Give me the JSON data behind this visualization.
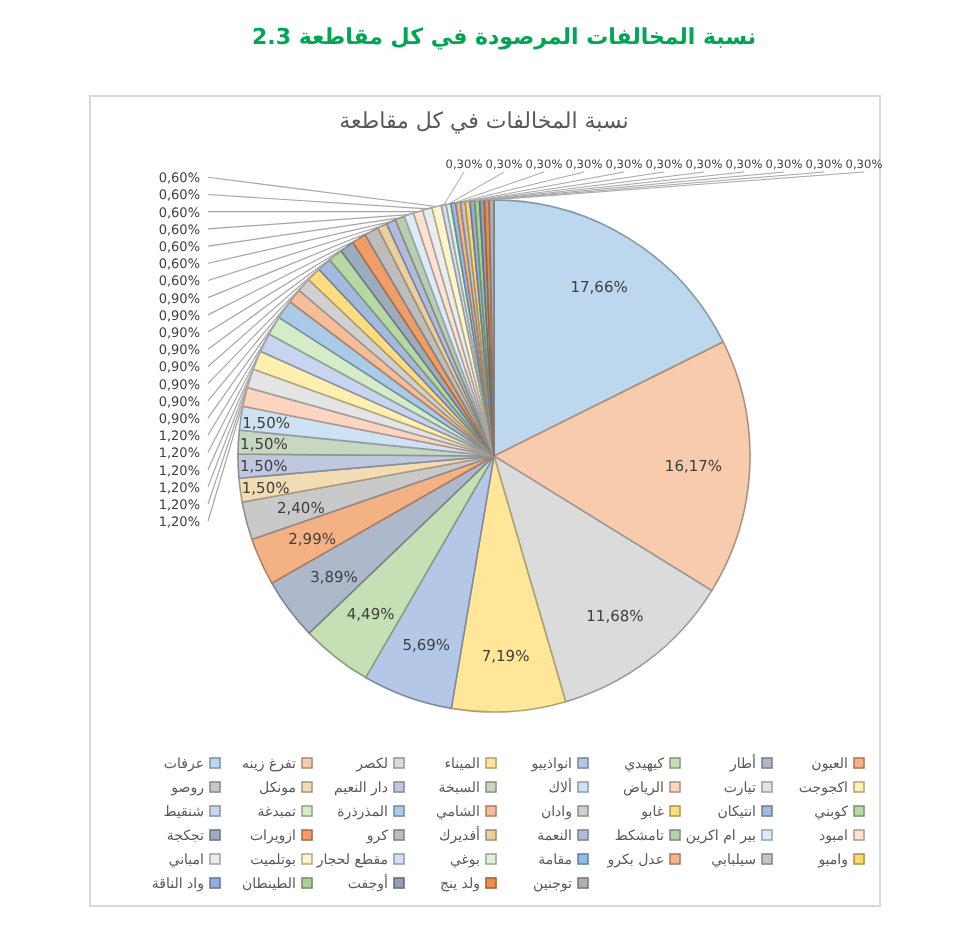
{
  "chart_data": {
    "type": "pie",
    "title": "نسبة المخالفات في كل مقاطعة",
    "annotations": [
      "2.3   نسبة المخالفات المرصودة في كل مقاطعة"
    ],
    "categories": [
      "عرفات",
      "تفرغ زينه",
      "لكصر",
      "الميناء",
      "انواذيبو",
      "كيهيدي",
      "أطار",
      "العيون",
      "روصو",
      "مونكل",
      "دار النعيم",
      "السبخة",
      "ألاك",
      "الرياض",
      "تيارت",
      "اكجوجت",
      "شنقيط",
      "تمبدغة",
      "المذرذرة",
      "الشامي",
      "وادان",
      "غابو",
      "انتيكان",
      "كوبني",
      "تجكجة",
      "ازويرات",
      "كرو",
      "أفديرك",
      "النعمة",
      "تامشكط",
      "بير ام اكرين",
      "امبود",
      "امباني",
      "بوتلميت",
      "مقطع لحجار",
      "بوغي",
      "مقامة",
      "عدل بكرو",
      "سيلبابي",
      "وامبو",
      "واد الناقة",
      "الطينطان",
      "أوجفت",
      "ولد ينج",
      "توجنين"
    ],
    "values": [
      17.66,
      16.17,
      11.68,
      7.19,
      5.69,
      4.49,
      3.89,
      2.99,
      2.4,
      1.5,
      1.5,
      1.5,
      1.5,
      1.2,
      1.2,
      1.2,
      1.2,
      1.2,
      1.2,
      0.9,
      0.9,
      0.9,
      0.9,
      0.9,
      0.9,
      0.9,
      0.9,
      0.6,
      0.6,
      0.6,
      0.6,
      0.6,
      0.6,
      0.6,
      0.3,
      0.3,
      0.3,
      0.3,
      0.3,
      0.3,
      0.3,
      0.3,
      0.3,
      0.3,
      0.3
    ],
    "value_labels": [
      "17,66%",
      "16,17%",
      "11,68%",
      "7,19%",
      "5,69%",
      "4,49%",
      "3,89%",
      "2,99%",
      "2,40%",
      "1,50%",
      "1,50%",
      "1,50%",
      "1,50%",
      "1,20%",
      "1,20%",
      "1,20%",
      "1,20%",
      "1,20%",
      "1,20%",
      "0,90%",
      "0,90%",
      "0,90%",
      "0,90%",
      "0,90%",
      "0,90%",
      "0,90%",
      "0,90%",
      "0,60%",
      "0,60%",
      "0,60%",
      "0,60%",
      "0,60%",
      "0,60%",
      "0,60%",
      "0,30%",
      "0,30%",
      "0,30%",
      "0,30%",
      "0,30%",
      "0,30%",
      "0,30%",
      "0,30%",
      "0,30%",
      "0,30%",
      "0,30%"
    ],
    "colors": [
      "#bdd7ee",
      "#f8cbad",
      "#dbdbdb",
      "#ffe699",
      "#b4c7e7",
      "#c5e0b4",
      "#adb9ca",
      "#f4b183",
      "#c9c9c9",
      "#f2dcb3",
      "#c0c8e0",
      "#c8d8c0",
      "#cfe2f3",
      "#fbd5c0",
      "#e4e4e4",
      "#fff0b0",
      "#c8d4f0",
      "#d5ecc8",
      "#a9cbe8",
      "#f6bd98",
      "#d0d0d0",
      "#ffdc80",
      "#a3b9df",
      "#b6d8a2",
      "#9dabbe",
      "#f09d68",
      "#bdbdbd",
      "#ead0a0",
      "#b2bcda",
      "#b9cdb0",
      "#dcebf8",
      "#fde2d2",
      "#ececec",
      "#fff5c8",
      "#d6def5",
      "#e0f2d6",
      "#8fbfe6",
      "#f3b48a",
      "#c4c4c4",
      "#fbd86e",
      "#94addc",
      "#a8d192",
      "#8f9fb5",
      "#ec8c52",
      "#b0b0b0"
    ],
    "legend": "bottom"
  }
}
